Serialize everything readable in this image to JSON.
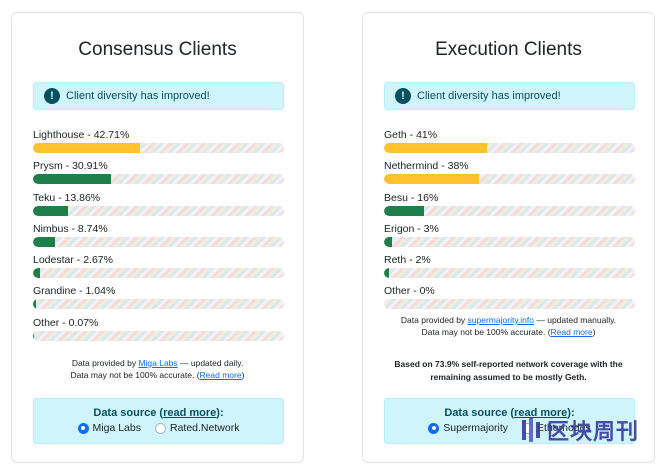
{
  "consensus": {
    "title": "Consensus Clients",
    "alert": "Client diversity has improved!",
    "clients": [
      {
        "label": "Lighthouse - 42.71%",
        "value": 42.71,
        "color": "#ffc12e"
      },
      {
        "label": "Prysm - 30.91%",
        "value": 30.91,
        "color": "#1e7f4b"
      },
      {
        "label": "Teku - 13.86%",
        "value": 13.86,
        "color": "#1e7f4b"
      },
      {
        "label": "Nimbus - 8.74%",
        "value": 8.74,
        "color": "#1e7f4b"
      },
      {
        "label": "Lodestar - 2.67%",
        "value": 2.67,
        "color": "#1e7f4b"
      },
      {
        "label": "Grandine - 1.04%",
        "value": 1.04,
        "color": "#1e7f4b"
      },
      {
        "label": "Other - 0.07%",
        "value": 0.07,
        "color": "#1e7f4b"
      }
    ],
    "footnote": {
      "pre": "Data provided by ",
      "link": "Miga Labs",
      "post": " — updated daily.",
      "line2_pre": "Data may not be 100% accurate. (",
      "line2_link": "Read more",
      "line2_post": ")"
    },
    "source": {
      "title_pre": "Data source (",
      "title_link": "read more",
      "title_post": "):",
      "options": [
        {
          "label": "Miga Labs",
          "checked": true
        },
        {
          "label": "Rated.Network",
          "checked": false
        }
      ]
    }
  },
  "execution": {
    "title": "Execution Clients",
    "alert": "Client diversity has improved!",
    "clients": [
      {
        "label": "Geth - 41%",
        "value": 41,
        "color": "#ffc12e"
      },
      {
        "label": "Nethermind - 38%",
        "value": 38,
        "color": "#ffc12e"
      },
      {
        "label": "Besu - 16%",
        "value": 16,
        "color": "#1e7f4b"
      },
      {
        "label": "Erigon - 3%",
        "value": 3,
        "color": "#1e7f4b"
      },
      {
        "label": "Reth - 2%",
        "value": 2,
        "color": "#1e7f4b"
      },
      {
        "label": "Other - 0%",
        "value": 0,
        "color": "#1e7f4b"
      }
    ],
    "footnote": {
      "pre": "Data provided by ",
      "link": "supermajority.info",
      "post": " — updated manually.",
      "line2_pre": "Data may not be 100% accurate. (",
      "line2_link": "Read more",
      "line2_post": ")"
    },
    "coverage_note": "Based on 73.9% self-reported network coverage with the remaining assumed to be mostly Geth.",
    "source": {
      "title_pre": "Data source (",
      "title_link": "read more",
      "title_post": "):",
      "options": [
        {
          "label": "Supermajority",
          "checked": true
        },
        {
          "label": "Ethernodes",
          "checked": false
        }
      ]
    }
  },
  "watermark": {
    "text": "区块周刊",
    "icon": "publication-logo-icon"
  }
}
